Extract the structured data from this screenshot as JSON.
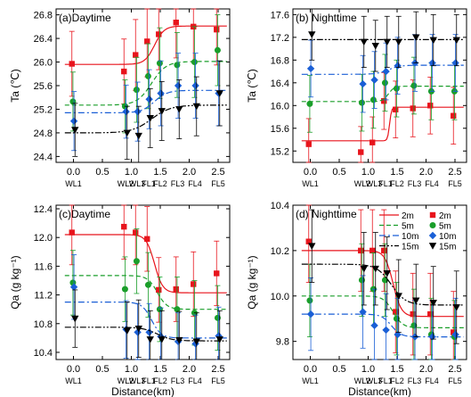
{
  "chart_data": [
    {
      "type": "scatter",
      "title": "(a)Daytime",
      "ylabel": "Ta (℃)",
      "xlabel": "",
      "xlim": [
        -0.3,
        2.7
      ],
      "ylim": [
        24.3,
        26.9
      ],
      "yticks": [
        24.4,
        24.8,
        25.2,
        25.6,
        26.0,
        26.4,
        26.8
      ],
      "xticks": [
        0.0,
        0.5,
        1.0,
        1.5,
        2.0,
        2.5
      ],
      "sites": [
        {
          "label": "WL1",
          "x": 0.0
        },
        {
          "label": "WL2",
          "x": 0.9
        },
        {
          "label": "WL3",
          "x": 1.1
        },
        {
          "label": "FL1",
          "x": 1.3
        },
        {
          "label": "FL2",
          "x": 1.5
        },
        {
          "label": "FL3",
          "x": 1.8
        },
        {
          "label": "FL4",
          "x": 2.1
        },
        {
          "label": "FL5",
          "x": 2.5
        }
      ],
      "series": [
        {
          "name": "2m",
          "color": "#e8141c",
          "marker": "square",
          "linestyle": "solid",
          "values": [
            25.97,
            25.84,
            26.12,
            26.35,
            26.47,
            26.67,
            26.6,
            26.55
          ],
          "errors": [
            0.55,
            0.55,
            0.6,
            0.6,
            0.6,
            0.6,
            0.6,
            0.6
          ],
          "fit": {
            "low": 25.96,
            "high": 26.61,
            "x0": 1.4,
            "k": 12
          }
        },
        {
          "name": "5m",
          "color": "#1a9e2a",
          "marker": "circle",
          "linestyle": "dash",
          "values": [
            25.33,
            25.25,
            25.53,
            25.76,
            25.98,
            25.95,
            26.0,
            26.2
          ],
          "errors": [
            0.5,
            0.45,
            0.55,
            0.55,
            0.6,
            0.55,
            0.6,
            0.6
          ],
          "fit": {
            "low": 25.27,
            "high": 26.01,
            "x0": 1.35,
            "k": 8
          }
        },
        {
          "name": "10m",
          "color": "#1a5fd6",
          "marker": "diamond",
          "linestyle": "dashdot",
          "values": [
            25.0,
            25.16,
            25.16,
            25.37,
            25.47,
            25.6,
            25.6,
            25.47
          ],
          "errors": [
            0.5,
            0.45,
            0.5,
            0.5,
            0.55,
            0.55,
            0.55,
            0.55
          ],
          "fit": {
            "low": 25.14,
            "high": 25.52,
            "x0": 1.4,
            "k": 9
          }
        },
        {
          "name": "15m",
          "color": "#000000",
          "marker": "triangle-down",
          "linestyle": "dashdotdot",
          "values": [
            24.85,
            24.8,
            24.75,
            25.05,
            25.17,
            25.2,
            25.25,
            25.47
          ],
          "errors": [
            0.45,
            0.45,
            0.5,
            0.5,
            0.5,
            0.5,
            0.5,
            0.55
          ],
          "fit": {
            "low": 24.8,
            "high": 25.27,
            "x0": 1.35,
            "k": 6
          }
        }
      ]
    },
    {
      "type": "scatter",
      "title": "(b) Nighttime",
      "ylabel": "Ta (℃)",
      "xlabel": "",
      "xlim": [
        -0.3,
        2.7
      ],
      "ylim": [
        15.0,
        17.7
      ],
      "yticks": [
        15.2,
        15.6,
        16.0,
        16.4,
        16.8,
        17.2,
        17.6
      ],
      "xticks": [
        0.0,
        0.5,
        1.0,
        1.5,
        2.0,
        2.5
      ],
      "sites": [
        {
          "label": "WL1",
          "x": 0.0
        },
        {
          "label": "WL2",
          "x": 0.9
        },
        {
          "label": "WL3",
          "x": 1.1
        },
        {
          "label": "FL1",
          "x": 1.3
        },
        {
          "label": "FL2",
          "x": 1.5
        },
        {
          "label": "FL3",
          "x": 1.8
        },
        {
          "label": "FL4",
          "x": 2.1
        },
        {
          "label": "FL5",
          "x": 2.5
        }
      ],
      "series": [
        {
          "name": "2m",
          "color": "#e8141c",
          "marker": "square",
          "linestyle": "solid",
          "values": [
            15.32,
            15.18,
            15.35,
            16.08,
            15.93,
            15.95,
            16.0,
            15.82
          ],
          "errors": [
            0.45,
            0.45,
            0.45,
            0.5,
            0.5,
            0.5,
            0.5,
            0.5
          ],
          "fit": {
            "low": 15.38,
            "high": 15.97,
            "x0": 1.37,
            "k": 60
          }
        },
        {
          "name": "5m",
          "color": "#1a9e2a",
          "marker": "circle",
          "linestyle": "dash",
          "values": [
            16.03,
            16.05,
            16.1,
            16.4,
            16.3,
            16.35,
            16.25,
            16.25
          ],
          "errors": [
            0.5,
            0.5,
            0.5,
            0.5,
            0.5,
            0.5,
            0.5,
            0.5
          ],
          "fit": {
            "low": 16.07,
            "high": 16.34,
            "x0": 1.35,
            "k": 20
          }
        },
        {
          "name": "10m",
          "color": "#1a5fd6",
          "marker": "diamond",
          "linestyle": "dashdot",
          "values": [
            16.65,
            16.38,
            16.45,
            16.6,
            16.7,
            16.75,
            16.75,
            16.75
          ],
          "errors": [
            0.5,
            0.5,
            0.5,
            0.5,
            0.5,
            0.5,
            0.5,
            0.5
          ],
          "fit": {
            "low": 16.55,
            "high": 16.71,
            "x0": 1.35,
            "k": 10
          }
        },
        {
          "name": "15m",
          "color": "#000000",
          "marker": "triangle-down",
          "linestyle": "dashdotdot",
          "values": [
            17.25,
            17.12,
            17.05,
            17.12,
            17.12,
            17.2,
            17.15,
            17.15
          ],
          "errors": [
            0.45,
            0.45,
            0.45,
            0.45,
            0.45,
            0.45,
            0.45,
            0.45
          ],
          "fit": {
            "low": 17.16,
            "high": 17.16,
            "x0": 1.35,
            "k": 10
          }
        }
      ]
    },
    {
      "type": "scatter",
      "title": "(c)Daytime",
      "ylabel": "Qa (g kg⁻¹)",
      "xlabel": "Distance(km)",
      "xlim": [
        -0.3,
        2.7
      ],
      "ylim": [
        10.3,
        12.45
      ],
      "yticks": [
        10.4,
        10.8,
        11.2,
        11.6,
        12.0,
        12.4
      ],
      "xticks": [
        0.0,
        0.5,
        1.0,
        1.5,
        2.0,
        2.5
      ],
      "sites": [
        {
          "label": "WL1",
          "x": 0.0
        },
        {
          "label": "WL2",
          "x": 0.9
        },
        {
          "label": "WL3",
          "x": 1.1
        },
        {
          "label": "FL1",
          "x": 1.3
        },
        {
          "label": "FL2",
          "x": 1.5
        },
        {
          "label": "FL3",
          "x": 1.8
        },
        {
          "label": "FL4",
          "x": 2.1
        },
        {
          "label": "FL5",
          "x": 2.5
        }
      ],
      "series": [
        {
          "name": "2m",
          "color": "#e8141c",
          "marker": "square",
          "linestyle": "solid",
          "values": [
            12.07,
            12.15,
            12.07,
            11.98,
            11.27,
            11.28,
            11.35,
            11.5
          ],
          "errors": [
            0.45,
            0.45,
            0.45,
            0.45,
            0.45,
            0.45,
            0.45,
            0.45
          ],
          "fit": {
            "low": 11.23,
            "high": 12.04,
            "x0": 1.4,
            "k": -14
          }
        },
        {
          "name": "5m",
          "color": "#1a9e2a",
          "marker": "circle",
          "linestyle": "dash",
          "values": [
            11.37,
            11.28,
            11.67,
            11.34,
            11.0,
            11.0,
            10.95,
            10.88
          ],
          "errors": [
            0.45,
            0.45,
            0.45,
            0.45,
            0.45,
            0.45,
            0.45,
            0.45
          ],
          "fit": {
            "low": 11.0,
            "high": 11.47,
            "x0": 1.45,
            "k": -12
          }
        },
        {
          "name": "10m",
          "color": "#1a5fd6",
          "marker": "diamond",
          "linestyle": "dashdot",
          "values": [
            11.31,
            10.72,
            10.68,
            10.68,
            10.62,
            10.55,
            10.52,
            10.63
          ],
          "errors": [
            0.45,
            0.4,
            0.4,
            0.4,
            0.4,
            0.4,
            0.4,
            0.4
          ],
          "fit": {
            "low": 10.6,
            "high": 11.1,
            "x0": 1.35,
            "k": -12
          }
        },
        {
          "name": "15m",
          "color": "#000000",
          "marker": "triangle-down",
          "linestyle": "dashdotdot",
          "values": [
            10.87,
            10.7,
            10.73,
            10.58,
            10.58,
            10.57,
            10.55,
            10.58
          ],
          "errors": [
            0.4,
            0.4,
            0.4,
            0.4,
            0.4,
            0.4,
            0.4,
            0.4
          ],
          "fit": {
            "low": 10.56,
            "high": 10.75,
            "x0": 1.45,
            "k": -8
          }
        }
      ]
    },
    {
      "type": "scatter",
      "title": "(d) Nighttime",
      "ylabel": "Qa (g kg⁻¹)",
      "xlabel": "Distance(km)",
      "xlim": [
        -0.3,
        2.7
      ],
      "ylim": [
        9.72,
        10.4
      ],
      "yticks": [
        9.8,
        10.0,
        10.2,
        10.4
      ],
      "xticks": [
        0.0,
        0.5,
        1.0,
        1.5,
        2.0,
        2.5
      ],
      "legend_position": "top-right",
      "sites": [
        {
          "label": "WL1",
          "x": 0.0
        },
        {
          "label": "WL2",
          "x": 0.9
        },
        {
          "label": "WL3",
          "x": 1.1
        },
        {
          "label": "FL1",
          "x": 1.3
        },
        {
          "label": "FL2",
          "x": 1.5
        },
        {
          "label": "FL3",
          "x": 1.8
        },
        {
          "label": "FL4",
          "x": 2.1
        },
        {
          "label": "FL5",
          "x": 2.5
        }
      ],
      "series": [
        {
          "name": "2m",
          "color": "#e8141c",
          "marker": "square",
          "linestyle": "solid",
          "values": [
            10.24,
            10.2,
            10.2,
            10.2,
            9.93,
            9.92,
            9.92,
            9.84
          ],
          "errors": [
            0.18,
            0.18,
            0.18,
            0.18,
            0.18,
            0.18,
            0.18,
            0.18
          ],
          "fit": {
            "low": 9.91,
            "high": 10.2,
            "x0": 1.43,
            "k": -14
          }
        },
        {
          "name": "5m",
          "color": "#1a9e2a",
          "marker": "circle",
          "linestyle": "dash",
          "values": [
            9.98,
            10.07,
            10.03,
            10.07,
            9.9,
            9.87,
            9.83,
            9.82
          ],
          "errors": [
            0.16,
            0.16,
            0.16,
            0.16,
            0.16,
            0.16,
            0.16,
            0.16
          ],
          "fit": {
            "low": 9.86,
            "high": 10.0,
            "x0": 1.43,
            "k": -12
          }
        },
        {
          "name": "10m",
          "color": "#1a5fd6",
          "marker": "diamond",
          "linestyle": "dashdot",
          "values": [
            9.92,
            9.93,
            9.87,
            9.85,
            9.83,
            9.82,
            9.82,
            9.83
          ],
          "errors": [
            0.16,
            0.16,
            0.16,
            0.16,
            0.16,
            0.16,
            0.16,
            0.16
          ],
          "fit": {
            "low": 9.82,
            "high": 9.92,
            "x0": 1.4,
            "k": -12
          }
        },
        {
          "name": "15m",
          "color": "#000000",
          "marker": "triangle-down",
          "linestyle": "dashdotdot",
          "values": [
            10.22,
            10.12,
            10.12,
            10.1,
            10.0,
            9.98,
            9.97,
            9.95
          ],
          "errors": [
            0.16,
            0.16,
            0.16,
            0.16,
            0.16,
            0.16,
            0.16,
            0.16
          ],
          "fit": {
            "low": 9.96,
            "high": 10.14,
            "x0": 1.4,
            "k": -8
          }
        }
      ]
    }
  ]
}
